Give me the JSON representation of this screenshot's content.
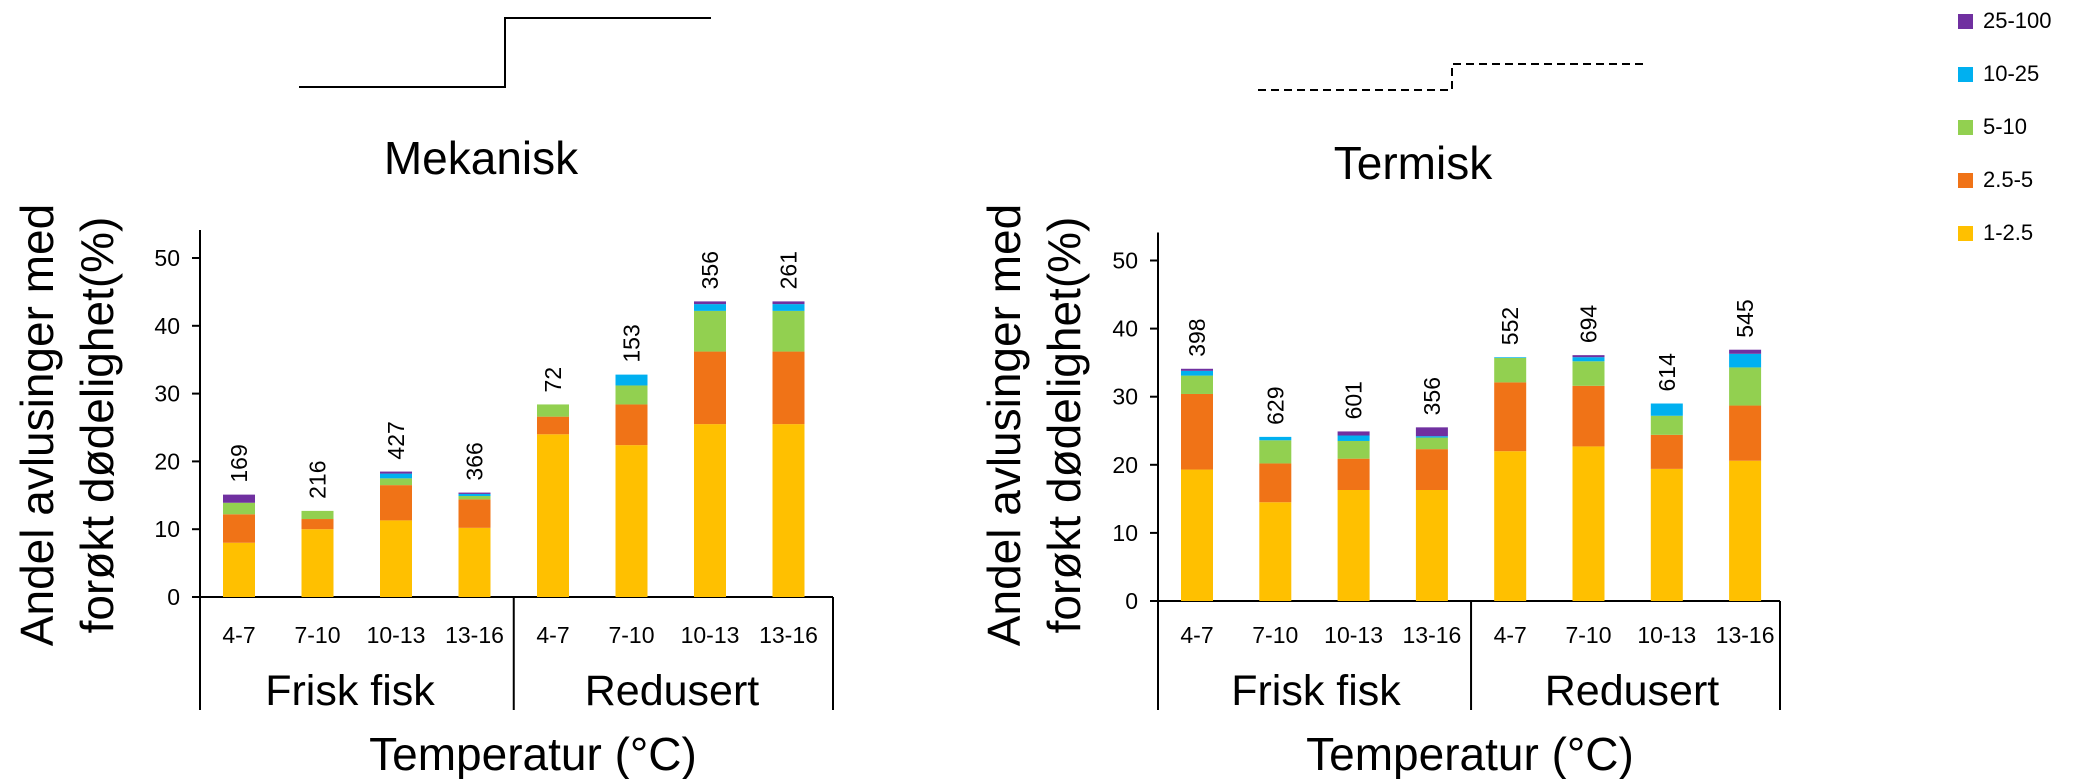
{
  "colors": {
    "1-2.5": "#FFC000",
    "2.5-5": "#F07317",
    "5-10": "#92D050",
    "10-25": "#00B0F0",
    "25-100": "#7030A0"
  },
  "legend": {
    "entries": [
      "25-100",
      "10-25",
      "5-10",
      "2.5-5",
      "1-2.5"
    ]
  },
  "chart_data": [
    {
      "type": "bar",
      "stacked": true,
      "title": "Mekanisk",
      "ylabel_line1": "Andel avlusinger  med",
      "ylabel_line2": "forøkt dødelighet(%)",
      "xlabel": "Temperatur (°C)",
      "ylim": [
        0,
        50
      ],
      "yticks": [
        "0",
        "10",
        "20",
        "30",
        "40",
        "50"
      ],
      "groups": [
        "Frisk fisk",
        "Redusert"
      ],
      "categories": [
        "4-7",
        "7-10",
        "10-13",
        "13-16",
        "4-7",
        "7-10",
        "10-13",
        "13-16"
      ],
      "n_labels": [
        "169",
        "216",
        "427",
        "366",
        "72",
        "153",
        "356",
        "261"
      ],
      "series": [
        {
          "name": "1-2.5",
          "values": [
            8.0,
            10.0,
            11.3,
            10.2,
            24.0,
            22.4,
            25.5,
            25.5
          ]
        },
        {
          "name": "2.5-5",
          "values": [
            4.2,
            1.5,
            5.2,
            4.2,
            2.6,
            6.0,
            10.7,
            10.7
          ]
        },
        {
          "name": "5-10",
          "values": [
            1.7,
            1.2,
            1.0,
            0.5,
            1.8,
            2.8,
            6.0,
            6.0
          ]
        },
        {
          "name": "10-25",
          "values": [
            0.0,
            0.0,
            0.7,
            0.3,
            0.0,
            1.6,
            1.0,
            1.0
          ]
        },
        {
          "name": "25-100",
          "values": [
            1.2,
            0.0,
            0.3,
            0.2,
            0.0,
            0.0,
            0.4,
            0.4
          ]
        }
      ]
    },
    {
      "type": "bar",
      "stacked": true,
      "title": "Termisk",
      "ylabel_line1": "Andel avlusinger  med",
      "ylabel_line2": "forøkt dødelighet(%)",
      "xlabel": "Temperatur (°C)",
      "ylim": [
        0,
        50
      ],
      "yticks": [
        "0",
        "10",
        "20",
        "30",
        "40",
        "50"
      ],
      "groups": [
        "Frisk fisk",
        "Redusert"
      ],
      "categories": [
        "4-7",
        "7-10",
        "10-13",
        "13-16",
        "4-7",
        "7-10",
        "10-13",
        "13-16"
      ],
      "n_labels": [
        "398",
        "629",
        "601",
        "356",
        "552",
        "694",
        "614",
        "545"
      ],
      "series": [
        {
          "name": "1-2.5",
          "values": [
            19.3,
            14.5,
            16.3,
            16.3,
            22.0,
            22.7,
            19.4,
            20.6
          ]
        },
        {
          "name": "2.5-5",
          "values": [
            11.1,
            5.7,
            4.6,
            6.0,
            10.1,
            8.9,
            5.0,
            8.1
          ]
        },
        {
          "name": "5-10",
          "values": [
            2.7,
            3.4,
            2.6,
            1.7,
            3.6,
            3.6,
            2.8,
            5.6
          ]
        },
        {
          "name": "10-25",
          "values": [
            0.7,
            0.5,
            0.8,
            0.2,
            0.1,
            0.6,
            1.8,
            2.0
          ]
        },
        {
          "name": "25-100",
          "values": [
            0.3,
            0.0,
            0.6,
            1.3,
            0.0,
            0.3,
            0.0,
            0.6
          ]
        }
      ]
    }
  ]
}
